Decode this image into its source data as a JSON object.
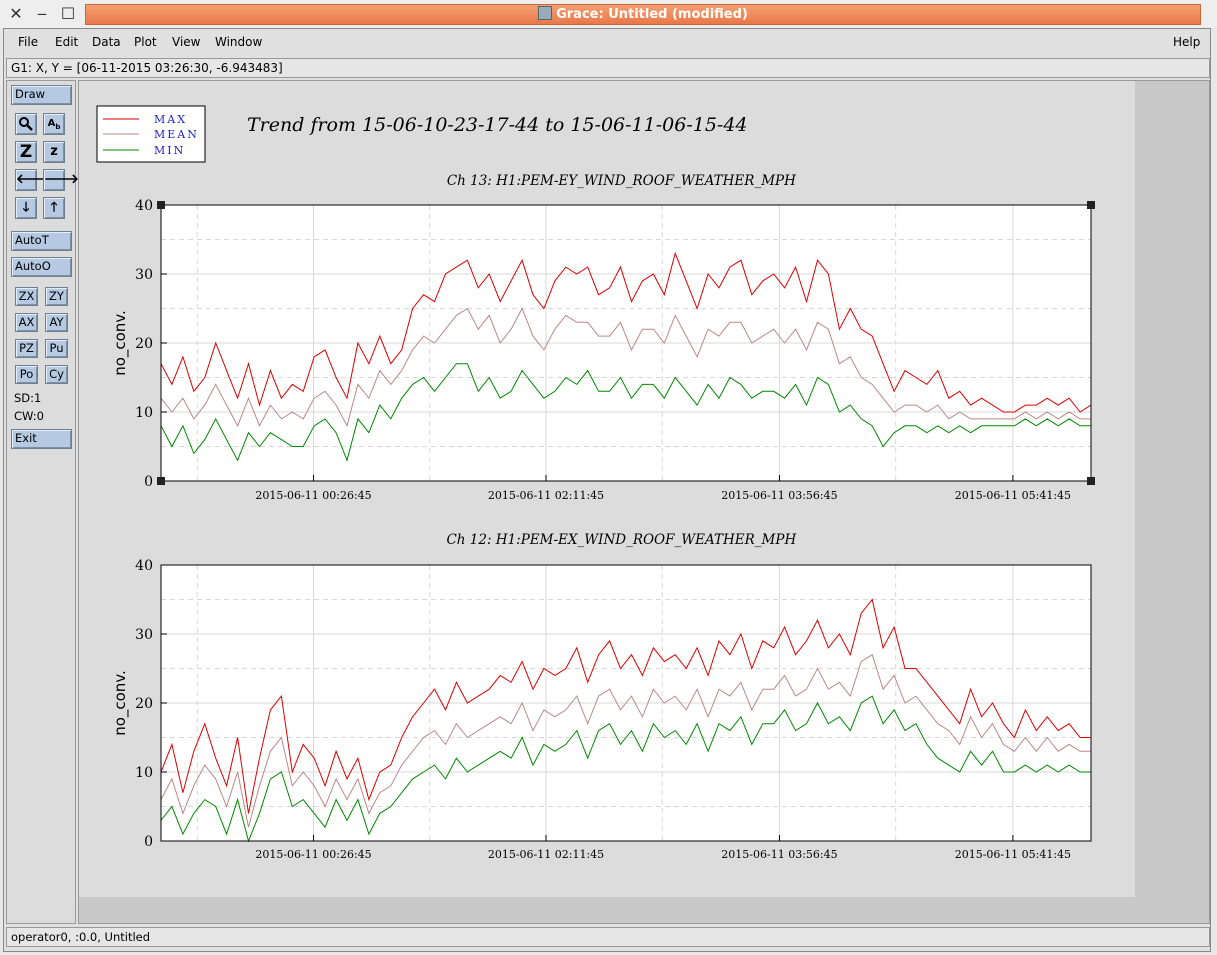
{
  "window": {
    "title": "Grace: Untitled (modified)"
  },
  "menu": {
    "file": "File",
    "edit": "Edit",
    "data": "Data",
    "plot": "Plot",
    "view": "View",
    "window": "Window",
    "help": "Help"
  },
  "locator": "G1: X, Y = [06-11-2015 03:26:30, -6.943483]",
  "toolbox": {
    "draw": "Draw",
    "zoom_icon": "Z",
    "zoom_shrink_icon": "z",
    "autot": "AutoT",
    "autoo": "AutoO",
    "zx": "ZX",
    "zy": "ZY",
    "ax": "AX",
    "ay": "AY",
    "pz": "PZ",
    "pu": "Pu",
    "po": "Po",
    "cy": "Cy",
    "sd": "SD:1",
    "cw": "CW:0",
    "exit": "Exit"
  },
  "status": "operator0, :0.0, Untitled",
  "plot": {
    "main_title": "Trend from 15-06-10-23-17-44 to 15-06-11-06-15-44",
    "legend": [
      {
        "label": "MAX",
        "color": "#dd0000"
      },
      {
        "label": "MEAN",
        "color": "#bb8888"
      },
      {
        "label": "MIN",
        "color": "#008800"
      }
    ],
    "label_color": "#2222cc"
  },
  "chart_data": [
    {
      "type": "line",
      "title": "Ch 13: H1:PEM-EY_WIND_ROOF_WEATHER_MPH",
      "xlabel": "",
      "ylabel": "no_conv.",
      "ylim": [
        0,
        40
      ],
      "yticks": [
        0,
        10,
        20,
        30,
        40
      ],
      "xlim": [
        "2015-06-10 23:17:44",
        "2015-06-11 06:15:44"
      ],
      "xtick_labels": [
        "2015-06-11 00:26:45",
        "2015-06-11 02:11:45",
        "2015-06-11 03:56:45",
        "2015-06-11 05:41:45"
      ],
      "grid": true,
      "series": [
        {
          "name": "MAX",
          "values": [
            17,
            14,
            18,
            13,
            15,
            20,
            16,
            12,
            17,
            11,
            16,
            12,
            14,
            13,
            18,
            19,
            15,
            12,
            20,
            17,
            21,
            17,
            19,
            25,
            27,
            26,
            30,
            31,
            32,
            28,
            30,
            26,
            29,
            32,
            27,
            25,
            29,
            31,
            30,
            31,
            27,
            28,
            31,
            26,
            29,
            30,
            27,
            33,
            29,
            25,
            30,
            28,
            31,
            32,
            27,
            29,
            30,
            28,
            31,
            26,
            32,
            30,
            22,
            25,
            22,
            21,
            17,
            13,
            16,
            15,
            14,
            16,
            12,
            13,
            11,
            12,
            11,
            10,
            10,
            11,
            11,
            12,
            11,
            12,
            10,
            11
          ]
        },
        {
          "name": "MEAN",
          "values": [
            12,
            10,
            12,
            9,
            11,
            14,
            11,
            8,
            12,
            8,
            11,
            9,
            10,
            9,
            12,
            13,
            11,
            8,
            14,
            12,
            16,
            14,
            16,
            19,
            21,
            20,
            22,
            24,
            25,
            22,
            24,
            20,
            22,
            25,
            21,
            19,
            22,
            24,
            23,
            23,
            21,
            21,
            23,
            19,
            22,
            22,
            20,
            24,
            21,
            18,
            22,
            21,
            23,
            23,
            20,
            21,
            22,
            20,
            22,
            19,
            23,
            22,
            17,
            18,
            15,
            14,
            12,
            10,
            11,
            11,
            10,
            11,
            9,
            10,
            9,
            9,
            9,
            9,
            9,
            10,
            9,
            10,
            9,
            10,
            9,
            9
          ]
        },
        {
          "name": "MIN",
          "values": [
            8,
            5,
            8,
            4,
            6,
            9,
            6,
            3,
            7,
            5,
            7,
            6,
            5,
            5,
            8,
            9,
            7,
            3,
            9,
            7,
            11,
            9,
            12,
            14,
            15,
            13,
            15,
            17,
            17,
            13,
            15,
            12,
            13,
            16,
            14,
            12,
            13,
            15,
            14,
            16,
            13,
            13,
            15,
            12,
            14,
            14,
            12,
            15,
            13,
            11,
            14,
            12,
            15,
            14,
            12,
            13,
            13,
            12,
            14,
            11,
            15,
            14,
            10,
            11,
            9,
            8,
            5,
            7,
            8,
            8,
            7,
            8,
            7,
            8,
            7,
            8,
            8,
            8,
            8,
            9,
            8,
            9,
            8,
            9,
            8,
            8
          ]
        }
      ]
    },
    {
      "type": "line",
      "title": "Ch 12: H1:PEM-EX_WIND_ROOF_WEATHER_MPH",
      "xlabel": "",
      "ylabel": "no_conv.",
      "ylim": [
        0,
        40
      ],
      "yticks": [
        0,
        10,
        20,
        30,
        40
      ],
      "xlim": [
        "2015-06-10 23:17:44",
        "2015-06-11 06:15:44"
      ],
      "xtick_labels": [
        "2015-06-11 00:26:45",
        "2015-06-11 02:11:45",
        "2015-06-11 03:56:45",
        "2015-06-11 05:41:45"
      ],
      "grid": true,
      "series": [
        {
          "name": "MAX",
          "values": [
            10,
            14,
            7,
            13,
            17,
            12,
            8,
            15,
            4,
            12,
            19,
            21,
            10,
            14,
            12,
            8,
            13,
            9,
            12,
            6,
            10,
            11,
            15,
            18,
            20,
            22,
            19,
            23,
            20,
            21,
            22,
            24,
            23,
            26,
            22,
            25,
            24,
            25,
            28,
            23,
            27,
            29,
            25,
            27,
            24,
            28,
            26,
            27,
            25,
            28,
            24,
            29,
            27,
            30,
            25,
            29,
            28,
            31,
            27,
            29,
            32,
            28,
            30,
            27,
            33,
            35,
            28,
            31,
            25,
            25,
            23,
            21,
            19,
            17,
            22,
            18,
            20,
            17,
            15,
            19,
            16,
            18,
            16,
            17,
            15,
            15
          ]
        },
        {
          "name": "MEAN",
          "values": [
            6,
            9,
            4,
            8,
            11,
            9,
            5,
            10,
            2,
            8,
            13,
            15,
            8,
            10,
            8,
            5,
            9,
            6,
            9,
            4,
            7,
            8,
            11,
            13,
            15,
            16,
            14,
            17,
            15,
            16,
            17,
            18,
            17,
            20,
            16,
            19,
            18,
            19,
            21,
            17,
            21,
            22,
            19,
            21,
            18,
            22,
            20,
            21,
            19,
            22,
            18,
            22,
            21,
            23,
            19,
            22,
            22,
            24,
            21,
            22,
            25,
            22,
            23,
            21,
            26,
            27,
            22,
            24,
            20,
            21,
            19,
            17,
            16,
            14,
            18,
            15,
            17,
            14,
            13,
            15,
            13,
            15,
            13,
            14,
            13,
            13
          ]
        },
        {
          "name": "MIN",
          "values": [
            3,
            5,
            1,
            4,
            6,
            5,
            1,
            6,
            0,
            4,
            9,
            10,
            5,
            6,
            4,
            2,
            6,
            3,
            6,
            1,
            4,
            5,
            7,
            9,
            10,
            11,
            9,
            12,
            10,
            11,
            12,
            13,
            12,
            15,
            11,
            14,
            13,
            14,
            16,
            12,
            16,
            17,
            14,
            16,
            13,
            17,
            15,
            16,
            14,
            17,
            13,
            17,
            16,
            18,
            14,
            17,
            17,
            19,
            16,
            17,
            20,
            17,
            18,
            16,
            20,
            21,
            17,
            19,
            16,
            17,
            14,
            12,
            11,
            10,
            13,
            11,
            13,
            10,
            10,
            11,
            10,
            11,
            10,
            11,
            10,
            10
          ]
        }
      ]
    }
  ]
}
